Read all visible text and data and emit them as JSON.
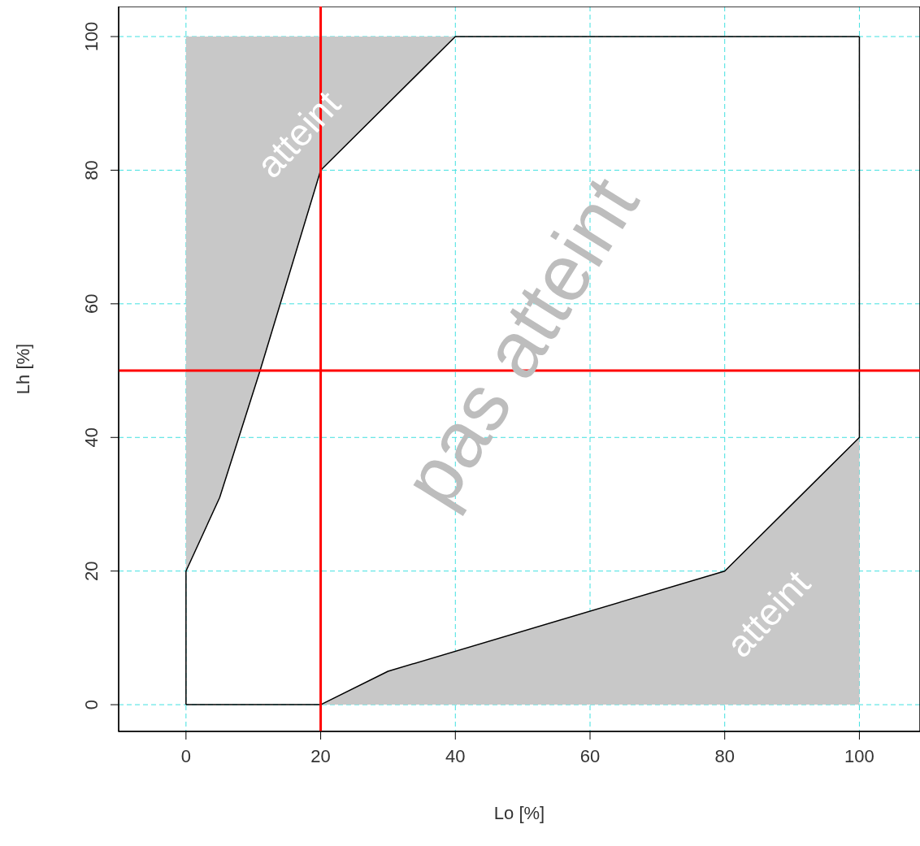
{
  "chart_data": {
    "type": "line",
    "xlabel": "Lo [%]",
    "ylabel": "Lh [%]",
    "xlim": [
      -10,
      109
    ],
    "ylim": [
      -4,
      104.5
    ],
    "xticks": [
      0,
      20,
      40,
      60,
      80,
      100
    ],
    "yticks": [
      0,
      20,
      40,
      60,
      80,
      100
    ],
    "grid": true,
    "marker": "none",
    "line_style": "solid",
    "series": [
      {
        "color": "#000000",
        "x": [
          0,
          0,
          5,
          11,
          20,
          40,
          100
        ],
        "values": [
          0,
          20,
          31,
          50,
          80,
          100,
          100
        ],
        "lower": [
          null,
          20,
          31,
          50,
          80,
          100,
          null
        ],
        "upper": [
          null,
          100,
          100,
          100,
          100,
          100,
          null
        ]
      },
      {
        "color": "#000000",
        "x": [
          0,
          20,
          30,
          80,
          100,
          100
        ],
        "values": [
          0,
          0,
          5,
          20,
          40,
          100
        ],
        "lower": [
          null,
          0,
          0,
          0,
          0,
          null
        ],
        "upper": [
          null,
          0,
          5,
          20,
          40,
          null
        ]
      }
    ],
    "ref_lines": [
      {
        "axis": "x",
        "value": 20,
        "color": "#ff0000"
      },
      {
        "axis": "y",
        "value": 50,
        "color": "#ff0000"
      }
    ],
    "annotations": [
      "atteint",
      "pas atteint",
      "atteint"
    ]
  }
}
